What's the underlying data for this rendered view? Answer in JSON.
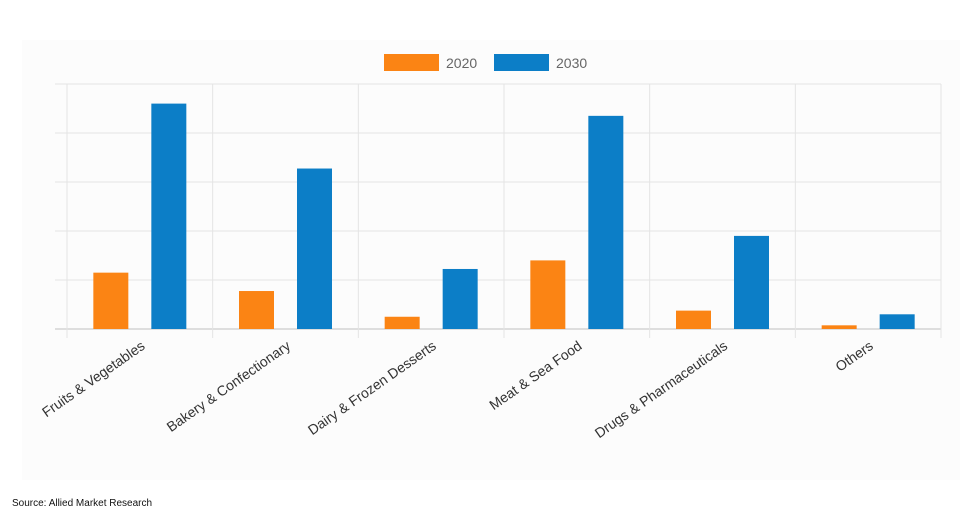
{
  "chart_data": {
    "type": "bar",
    "title": "",
    "xlabel": "",
    "ylabel": "",
    "ylim": [
      0,
      100
    ],
    "y_tick_labels_shown": false,
    "grid": true,
    "legend_position": "top-center",
    "categories": [
      "Fruits & Vegetables",
      "Bakery & Confectionary",
      "Dairy & Frozen Desserts",
      "Meat & Sea Food",
      "Drugs & Pharmaceuticals",
      "Others"
    ],
    "series": [
      {
        "name": "2020",
        "color": "#fb8414",
        "values": [
          23,
          15.5,
          5,
          28,
          7.5,
          1.5
        ]
      },
      {
        "name": "2030",
        "color": "#0c7ec7",
        "values": [
          92,
          65.5,
          24.5,
          87,
          38,
          6
        ]
      }
    ]
  },
  "source": "Source: Allied Market Research"
}
